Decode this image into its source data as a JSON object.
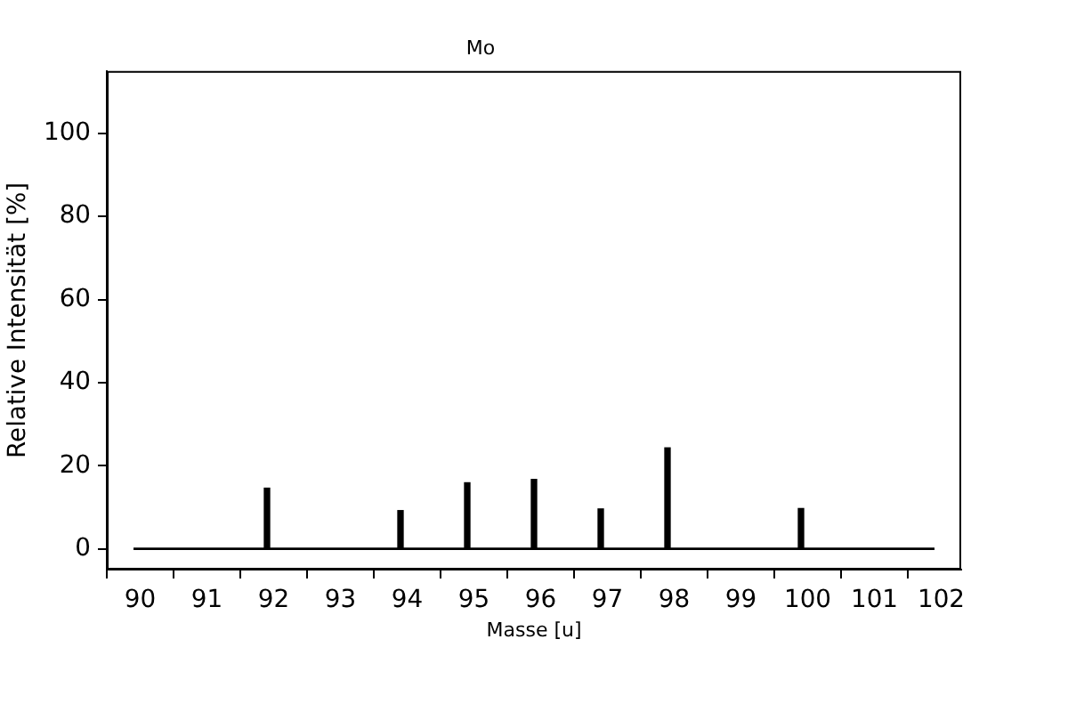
{
  "chart_data": {
    "type": "bar",
    "title": "Mo",
    "xlabel": "Masse [u]",
    "ylabel": "Relative Intensität [%]",
    "series": [
      {
        "color": "#000000",
        "x": [
          91.9,
          93.9,
          94.9,
          95.9,
          96.9,
          97.9,
          99.9
        ],
        "values": [
          14.6,
          9.2,
          15.9,
          16.7,
          9.6,
          24.3,
          9.7
        ]
      },
      {
        "type": "line",
        "color": "#000000",
        "x": [
          89.9,
          101.9
        ],
        "values": [
          0,
          0
        ]
      }
    ],
    "xlim": [
      89.5,
      102.3
    ],
    "ylim": [
      -5,
      115
    ],
    "xticks": [
      90,
      91,
      92,
      93,
      94,
      95,
      96,
      97,
      98,
      99,
      100,
      101,
      102
    ],
    "yticks": [
      0,
      20,
      40,
      60,
      80,
      100
    ]
  }
}
